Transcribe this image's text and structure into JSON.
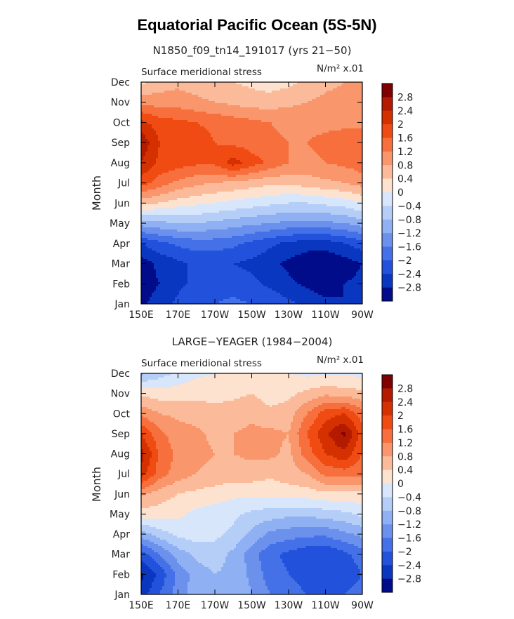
{
  "figure_title": "Equatorial Pacific Ocean (5S-5N)",
  "chart_data": [
    {
      "type": "heatmap",
      "title": "N1850_f09_tn14_191017 (yrs 21−50)",
      "left_label": "Surface meridional stress",
      "right_label": "N/m² x.01",
      "ylabel": "Month",
      "xlabel": "",
      "x_ticks": [
        "150E",
        "170E",
        "170W",
        "150W",
        "130W",
        "110W",
        "90W"
      ],
      "y_ticks": [
        "Jan",
        "Feb",
        "Mar",
        "Apr",
        "May",
        "Jun",
        "Jul",
        "Aug",
        "Sep",
        "Oct",
        "Nov",
        "Dec"
      ],
      "x": [
        150,
        160,
        170,
        180,
        190,
        200,
        210,
        220,
        230,
        240,
        250,
        260,
        270
      ],
      "levels": [
        "2.8",
        "2.4",
        "2",
        "1.6",
        "1.2",
        "0.8",
        "0.4",
        "0",
        "−0.4",
        "−0.8",
        "−1.2",
        "−1.6",
        "−2",
        "−2.4",
        "−2.8"
      ],
      "values": [
        [
          -2.9,
          -2.6,
          -2.3,
          -2.1,
          -2.0,
          -1.9,
          -2.0,
          -2.1,
          -2.3,
          -2.5,
          -2.7,
          -2.8,
          -2.6
        ],
        [
          -3.0,
          -2.8,
          -2.5,
          -2.3,
          -2.2,
          -2.2,
          -2.3,
          -2.5,
          -2.7,
          -2.9,
          -3.0,
          -2.8,
          -2.7
        ],
        [
          -3.0,
          -2.7,
          -2.5,
          -2.3,
          -2.3,
          -2.4,
          -2.5,
          -2.7,
          -2.9,
          -3.1,
          -3.2,
          -3.0,
          -2.8
        ],
        [
          -2.4,
          -2.1,
          -1.9,
          -1.8,
          -1.8,
          -1.9,
          -2.1,
          -2.3,
          -2.5,
          -2.6,
          -2.6,
          -2.4,
          -2.2
        ],
        [
          -1.0,
          -0.9,
          -0.8,
          -0.8,
          -0.9,
          -1.0,
          -1.1,
          -1.2,
          -1.3,
          -1.3,
          -1.3,
          -1.2,
          -1.0
        ],
        [
          0.5,
          0.4,
          0.2,
          0.1,
          0.0,
          -0.1,
          -0.2,
          -0.3,
          -0.4,
          -0.4,
          -0.3,
          -0.2,
          0.0
        ],
        [
          1.8,
          1.4,
          1.1,
          0.9,
          0.8,
          0.7,
          0.6,
          0.5,
          0.5,
          0.6,
          0.7,
          0.8,
          1.0
        ],
        [
          2.4,
          1.9,
          1.8,
          1.7,
          1.7,
          2.2,
          1.8,
          1.5,
          1.2,
          1.1,
          1.2,
          1.3,
          1.4
        ],
        [
          2.7,
          2.0,
          1.9,
          1.8,
          1.6,
          1.5,
          1.4,
          1.3,
          1.2,
          1.2,
          1.3,
          1.4,
          1.4
        ],
        [
          2.1,
          1.8,
          1.7,
          1.6,
          1.5,
          1.4,
          1.3,
          1.2,
          1.1,
          1.1,
          1.1,
          1.1,
          1.1
        ],
        [
          1.1,
          1.0,
          1.0,
          0.9,
          0.8,
          0.7,
          0.6,
          0.6,
          0.7,
          0.8,
          0.9,
          0.9,
          0.9
        ],
        [
          0.3,
          0.6,
          0.7,
          0.6,
          0.5,
          0.4,
          0.3,
          0.2,
          0.3,
          0.5,
          0.7,
          0.8,
          0.8
        ]
      ]
    },
    {
      "type": "heatmap",
      "title": "LARGE−YEAGER (1984−2004)",
      "left_label": "Surface meridional stress",
      "right_label": "N/m² x.01",
      "ylabel": "Month",
      "xlabel": "",
      "x_ticks": [
        "150E",
        "170E",
        "170W",
        "150W",
        "130W",
        "110W",
        "90W"
      ],
      "y_ticks": [
        "Jan",
        "Feb",
        "Mar",
        "Apr",
        "May",
        "Jun",
        "Jul",
        "Aug",
        "Sep",
        "Oct",
        "Nov",
        "Dec"
      ],
      "x": [
        150,
        160,
        170,
        180,
        190,
        200,
        210,
        220,
        230,
        240,
        250,
        260,
        270
      ],
      "levels": [
        "2.8",
        "2.4",
        "2",
        "1.6",
        "1.2",
        "0.8",
        "0.4",
        "0",
        "−0.4",
        "−0.8",
        "−1.2",
        "−1.6",
        "−2",
        "−2.4",
        "−2.8"
      ],
      "values": [
        [
          -2.6,
          -2.0,
          -1.4,
          -1.0,
          -0.8,
          -0.9,
          -1.2,
          -1.6,
          -1.8,
          -2.0,
          -2.1,
          -2.0,
          -1.8
        ],
        [
          -2.9,
          -2.3,
          -1.5,
          -1.0,
          -0.8,
          -0.9,
          -1.3,
          -1.8,
          -2.0,
          -2.2,
          -2.4,
          -2.3,
          -2.0
        ],
        [
          -2.2,
          -1.6,
          -1.0,
          -0.7,
          -0.6,
          -0.9,
          -1.4,
          -1.9,
          -2.1,
          -2.3,
          -2.4,
          -2.1,
          -1.8
        ],
        [
          -1.0,
          -0.6,
          -0.3,
          -0.2,
          -0.3,
          -0.5,
          -0.9,
          -1.3,
          -1.4,
          -1.5,
          -1.5,
          -1.3,
          -1.1
        ],
        [
          0.2,
          0.2,
          0.1,
          -0.1,
          -0.2,
          -0.3,
          -0.5,
          -0.6,
          -0.7,
          -0.7,
          -0.6,
          -0.5,
          -0.3
        ],
        [
          0.9,
          0.6,
          0.4,
          0.3,
          0.2,
          0.1,
          0.1,
          0.1,
          0.2,
          0.2,
          0.3,
          0.3,
          0.3
        ],
        [
          2.2,
          1.4,
          1.0,
          0.8,
          0.7,
          0.6,
          0.6,
          0.5,
          0.6,
          0.8,
          1.3,
          1.4,
          1.3
        ],
        [
          2.6,
          1.5,
          1.1,
          0.9,
          0.8,
          0.8,
          0.9,
          0.9,
          0.7,
          1.4,
          2.0,
          2.3,
          1.6
        ],
        [
          2.0,
          1.3,
          1.0,
          0.9,
          0.7,
          0.8,
          0.9,
          0.9,
          0.8,
          1.6,
          2.3,
          2.9,
          1.8
        ],
        [
          1.1,
          0.8,
          0.7,
          0.6,
          0.5,
          0.6,
          0.7,
          0.5,
          0.6,
          1.2,
          1.8,
          2.0,
          1.4
        ],
        [
          0.3,
          0.2,
          0.2,
          0.3,
          0.3,
          0.3,
          0.4,
          0.2,
          0.3,
          0.5,
          0.7,
          0.6,
          0.5
        ],
        [
          -0.9,
          -0.6,
          -0.3,
          -0.1,
          0.0,
          0.1,
          0.2,
          0.1,
          0.0,
          -0.1,
          -0.1,
          -0.1,
          -0.1
        ]
      ]
    }
  ],
  "colorbar_colors": [
    "#7f0000",
    "#b31a00",
    "#d43000",
    "#f04b12",
    "#f76f3c",
    "#f9966c",
    "#fbbb9a",
    "#fde2cf",
    "#d7e6fb",
    "#b5cef8",
    "#8fb0f2",
    "#6b91ec",
    "#4471e8",
    "#2252dc",
    "#0a37bf",
    "#000c8a"
  ]
}
